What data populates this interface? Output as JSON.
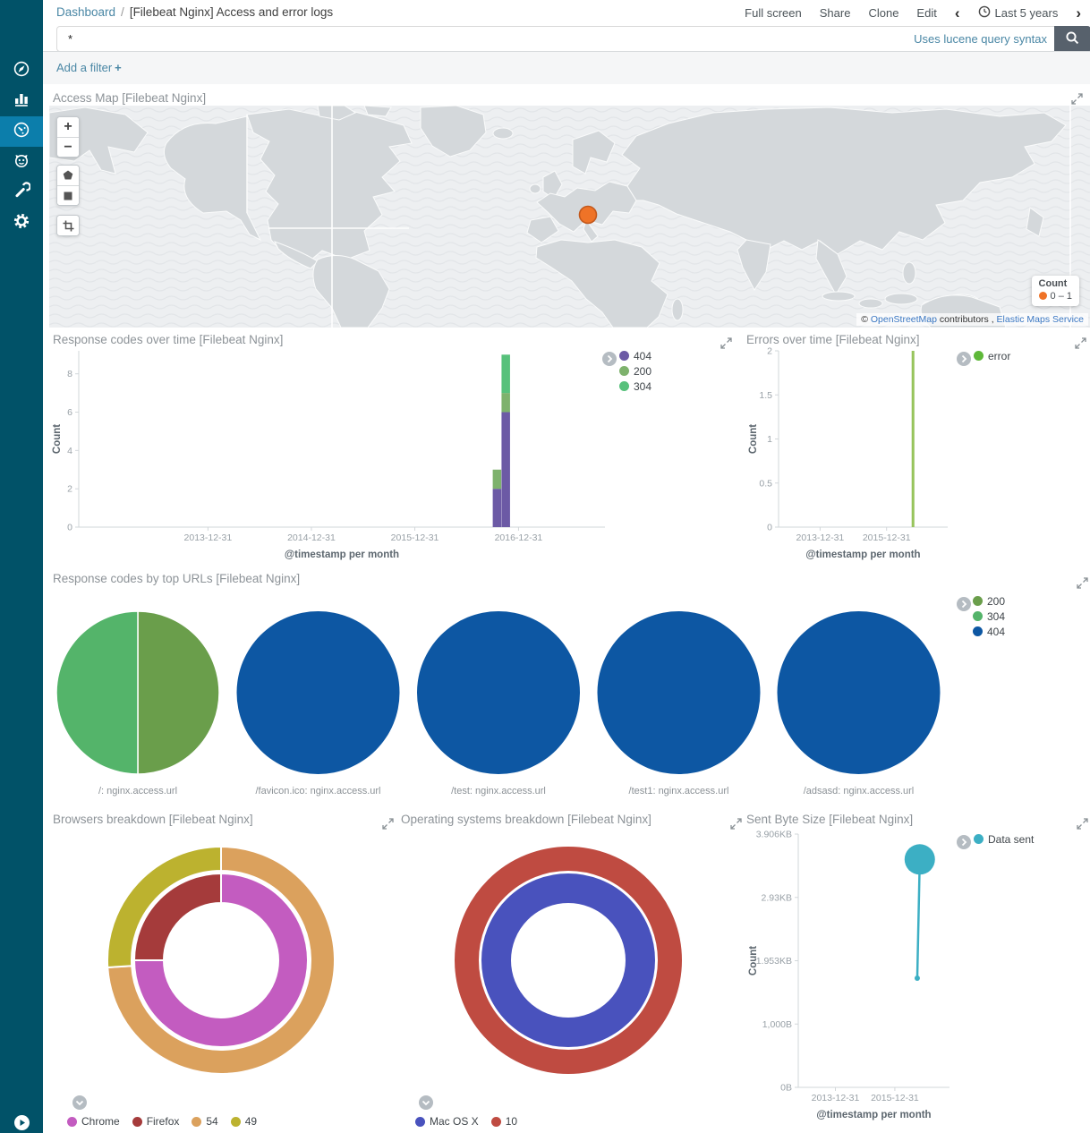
{
  "header": {
    "breadcrumb": {
      "root": "Dashboard",
      "separator": "/",
      "current": "[Filebeat Nginx] Access and error logs"
    },
    "actions": {
      "full_screen": "Full screen",
      "share": "Share",
      "clone": "Clone",
      "edit": "Edit"
    },
    "time_picker": {
      "prev": "‹",
      "label": "Last 5 years",
      "next": "›"
    }
  },
  "search": {
    "value": "*",
    "syntax_hint": "Uses lucene query syntax"
  },
  "filter_bar": {
    "add_filter": "Add a filter",
    "plus": "+"
  },
  "sidebar": {
    "items": [
      "discover",
      "visualize",
      "dashboard",
      "timelion",
      "dev-tools",
      "management"
    ],
    "active": "dashboard"
  },
  "map_panel": {
    "title": "Access Map [Filebeat Nginx]",
    "controls": {
      "zoom_in": "+",
      "zoom_out": "−"
    },
    "legend": {
      "title": "Count",
      "range_label": "0 – 1",
      "dot_color": "#ef7327"
    },
    "marker": {
      "color": "#ef7327",
      "border_color": "#c2581c"
    },
    "attribution": {
      "prefix": "©",
      "osm_link": "OpenStreetMap",
      "middle": "contributors ,",
      "ems_link": "Elastic Maps Service"
    }
  },
  "chart_data": [
    {
      "id": "response-codes",
      "type": "bar",
      "title": "Response codes over time [Filebeat Nginx]",
      "xlabel": "@timestamp per month",
      "ylabel": "Count",
      "x_domain": [
        "2012-10-01",
        "2017-11-01"
      ],
      "x_ticks": [
        "2013-12-31",
        "2014-12-31",
        "2015-12-31",
        "2016-12-31"
      ],
      "ylim": [
        0,
        9.2
      ],
      "y_ticks": [
        0,
        2,
        4,
        6,
        8
      ],
      "bar_month_days": 30,
      "series": [
        {
          "name": "404",
          "color": "#6c5aa5"
        },
        {
          "name": "200",
          "color": "#7eb26d"
        },
        {
          "name": "304",
          "color": "#57c17b"
        }
      ],
      "bars": [
        {
          "x": "2016-10-01",
          "values": {
            "404": 2,
            "200": 1,
            "304": 0
          }
        },
        {
          "x": "2016-11-01",
          "values": {
            "404": 6,
            "200": 1,
            "304": 2
          }
        }
      ],
      "legend": [
        {
          "label": "404",
          "color": "#6c5aa5"
        },
        {
          "label": "200",
          "color": "#7eb26d"
        },
        {
          "label": "304",
          "color": "#57c17b"
        }
      ],
      "legend_position": "right",
      "grid": false
    },
    {
      "id": "errors",
      "type": "bar",
      "title": "Errors over time [Filebeat Nginx]",
      "xlabel": "@timestamp per month",
      "ylabel": "Count",
      "x_domain": [
        "2012-10-01",
        "2017-11-01"
      ],
      "x_ticks": [
        "2013-12-31",
        "2015-12-31"
      ],
      "ylim": [
        0,
        2
      ],
      "y_ticks": [
        0,
        0.5,
        1,
        1.5,
        2
      ],
      "bar_month_days": 30,
      "series": [
        {
          "name": "error",
          "color": "#97c45c"
        }
      ],
      "bars": [
        {
          "x": "2016-10-01",
          "values": {
            "error": 2
          }
        }
      ],
      "legend": [
        {
          "label": "error",
          "color": "#5eb839"
        }
      ],
      "legend_position": "right",
      "grid": false
    },
    {
      "id": "url-pies",
      "type": "pie-row",
      "title": "Response codes by top URLs [Filebeat Nginx]",
      "colors": {
        "200": "#6a9e4b",
        "304": "#54b46a",
        "404": "#0d57a3"
      },
      "pies": [
        {
          "label": "/: nginx.access.url",
          "slices": [
            {
              "name": "200",
              "value": 1
            },
            {
              "name": "304",
              "value": 1
            }
          ]
        },
        {
          "label": "/favicon.ico: nginx.access.url",
          "slices": [
            {
              "name": "404",
              "value": 1
            }
          ]
        },
        {
          "label": "/test: nginx.access.url",
          "slices": [
            {
              "name": "404",
              "value": 1
            }
          ]
        },
        {
          "label": "/test1: nginx.access.url",
          "slices": [
            {
              "name": "404",
              "value": 1
            }
          ]
        },
        {
          "label": "/adsasd: nginx.access.url",
          "slices": [
            {
              "name": "404",
              "value": 1
            }
          ]
        }
      ],
      "legend": [
        {
          "label": "200",
          "color": "#6a9e4b"
        },
        {
          "label": "304",
          "color": "#54b46a"
        },
        {
          "label": "404",
          "color": "#0d57a3"
        }
      ],
      "legend_position": "right"
    },
    {
      "id": "browsers",
      "type": "donut",
      "title": "Browsers breakdown [Filebeat Nginx]",
      "rings": {
        "inner": [
          {
            "name": "Chrome",
            "value": 75,
            "color": "#c35cc0"
          },
          {
            "name": "Firefox",
            "value": 25,
            "color": "#a53b3b"
          }
        ],
        "outer": [
          {
            "name": "54",
            "value": 74,
            "color": "#dba15d"
          },
          {
            "name": "49",
            "value": 26,
            "color": "#bcb22f"
          }
        ]
      },
      "legend": [
        {
          "label": "Chrome",
          "color": "#c35cc0"
        },
        {
          "label": "Firefox",
          "color": "#a53b3b"
        },
        {
          "label": "54",
          "color": "#dba15d"
        },
        {
          "label": "49",
          "color": "#bcb22f"
        }
      ],
      "legend_position": "bottom"
    },
    {
      "id": "os",
      "type": "donut",
      "title": "Operating systems breakdown [Filebeat Nginx]",
      "rings": {
        "inner": [
          {
            "name": "Mac OS X",
            "value": 100,
            "color": "#4952bd"
          }
        ],
        "outer": [
          {
            "name": "10",
            "value": 100,
            "color": "#bf4b41"
          }
        ]
      },
      "legend": [
        {
          "label": "Mac OS X",
          "color": "#4952bd"
        },
        {
          "label": "10",
          "color": "#bf4b41"
        }
      ],
      "legend_position": "bottom"
    },
    {
      "id": "sent-bytes",
      "type": "line",
      "title": "Sent Byte Size [Filebeat Nginx]",
      "xlabel": "@timestamp per month",
      "ylabel": "Count",
      "x_domain": [
        "2012-10-01",
        "2017-11-01"
      ],
      "x_ticks": [
        "2013-12-31",
        "2015-12-31"
      ],
      "ylim": [
        0,
        4000
      ],
      "y_ticks": [
        {
          "v": 0,
          "label": "0B"
        },
        {
          "v": 1000,
          "label": "1,000B"
        },
        {
          "v": 2000,
          "label": "1.953KB"
        },
        {
          "v": 3000,
          "label": "2.93KB"
        },
        {
          "v": 4000,
          "label": "3.906KB"
        }
      ],
      "series": [
        {
          "name": "Data sent",
          "color": "#3cafc4",
          "points": [
            {
              "x": "2016-10-01",
              "y": 1724
            },
            {
              "x": "2016-11-01",
              "y": 3600
            }
          ],
          "bubble_last_r": 17,
          "dot_first_r": 3
        }
      ],
      "legend": [
        {
          "label": "Data sent",
          "color": "#3cafc4"
        }
      ],
      "legend_position": "right",
      "grid": false
    }
  ]
}
